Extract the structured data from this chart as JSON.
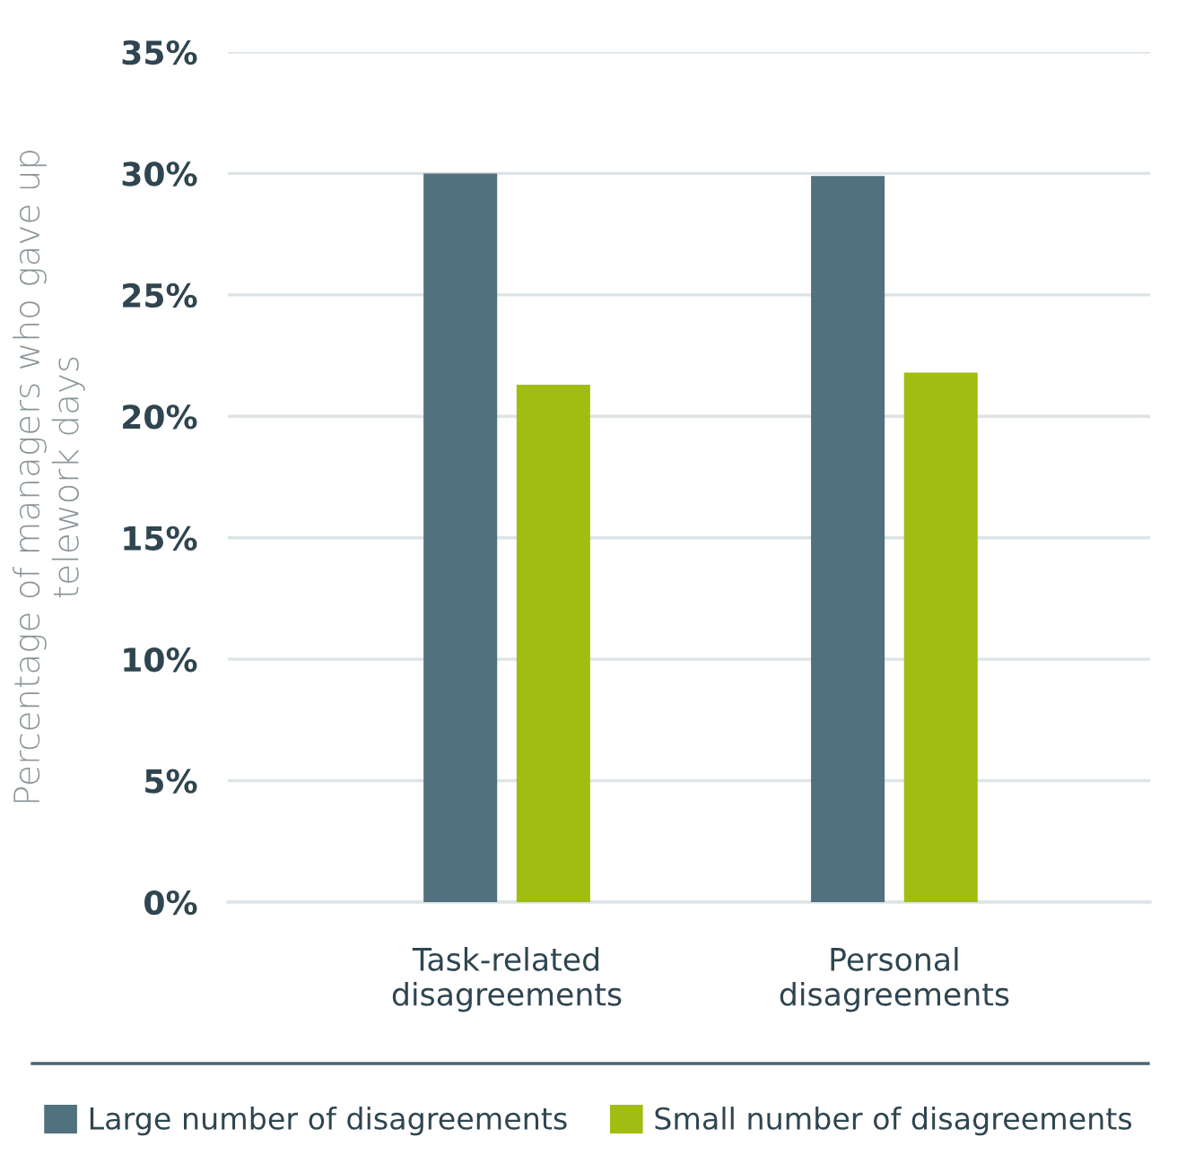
{
  "chart_data": {
    "type": "bar",
    "ylabel": "Percentage of managers who gave up\ntelework days",
    "categories": [
      "Task-related\ndisagreements",
      "Personal\ndisagreements"
    ],
    "series": [
      {
        "name": "Large number of disagreements",
        "color": "#51717e",
        "values": [
          30.0,
          29.9
        ]
      },
      {
        "name": "Small number of disagreements",
        "color": "#a2bd12",
        "values": [
          21.3,
          21.8
        ]
      }
    ],
    "ylim": [
      0,
      35
    ],
    "yticks": [
      {
        "value": 0,
        "label": "0%"
      },
      {
        "value": 5,
        "label": "5%"
      },
      {
        "value": 10,
        "label": "10%"
      },
      {
        "value": 15,
        "label": "15%"
      },
      {
        "value": 20,
        "label": "20%"
      },
      {
        "value": 25,
        "label": "25%"
      },
      {
        "value": 30,
        "label": "30%"
      },
      {
        "value": 35,
        "label": "35%"
      }
    ],
    "grid": "y",
    "legend": "bottom"
  }
}
